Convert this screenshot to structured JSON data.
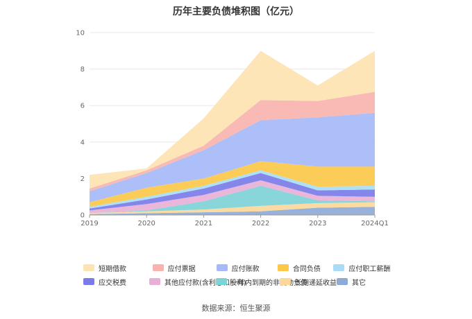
{
  "chart_data": {
    "type": "area",
    "stacked": true,
    "title": "历年主要负债堆积图（亿元）",
    "categories": [
      "2019",
      "2020",
      "2021",
      "2022",
      "2023",
      "2024Q1"
    ],
    "ylim": [
      0,
      10
    ],
    "yticks": [
      "0",
      "2",
      "4",
      "6",
      "8",
      "10"
    ],
    "grid": true,
    "legend_position": "bottom",
    "series": [
      {
        "name": "其它",
        "color": "#8eaad6",
        "values": [
          0.05,
          0.1,
          0.15,
          0.2,
          0.4,
          0.45
        ]
      },
      {
        "name": "长期递延收益",
        "color": "#fcd89a",
        "values": [
          0.05,
          0.1,
          0.15,
          0.3,
          0.25,
          0.25
        ]
      },
      {
        "name": "一年内到期的非流动负债",
        "color": "#7ed3d6",
        "values": [
          0.0,
          0.05,
          0.45,
          1.1,
          0.15,
          0.05
        ]
      },
      {
        "name": "其他应付款(含利息和股利)",
        "color": "#e8b0d6",
        "values": [
          0.15,
          0.35,
          0.35,
          0.3,
          0.25,
          0.25
        ]
      },
      {
        "name": "应交税费",
        "color": "#7b7ce8",
        "values": [
          0.1,
          0.25,
          0.35,
          0.4,
          0.3,
          0.4
        ]
      },
      {
        "name": "应付职工薪酬",
        "color": "#a9dcf7",
        "values": [
          0.1,
          0.15,
          0.15,
          0.15,
          0.2,
          0.2
        ]
      },
      {
        "name": "合同负债",
        "color": "#fcc84a",
        "values": [
          0.25,
          0.5,
          0.4,
          0.5,
          1.1,
          1.05
        ]
      },
      {
        "name": "应付账款",
        "color": "#a6baf8",
        "values": [
          0.6,
          0.8,
          1.55,
          2.25,
          2.7,
          2.95
        ]
      },
      {
        "name": "应付票据",
        "color": "#f9b3ae",
        "values": [
          0.15,
          0.15,
          0.25,
          1.1,
          0.9,
          1.15
        ]
      },
      {
        "name": "短期借款",
        "color": "#fde3b2",
        "values": [
          0.75,
          0.1,
          1.5,
          2.7,
          0.85,
          2.25
        ]
      }
    ],
    "legend_order": [
      "短期借款",
      "应付票据",
      "应付账款",
      "合同负债",
      "应付职工薪酬",
      "应交税费",
      "其他应付款(含利息和股利)",
      "一年内到期的非流动负债",
      "长期递延收益",
      "其它"
    ]
  },
  "source": "数据来源：恒生聚源"
}
